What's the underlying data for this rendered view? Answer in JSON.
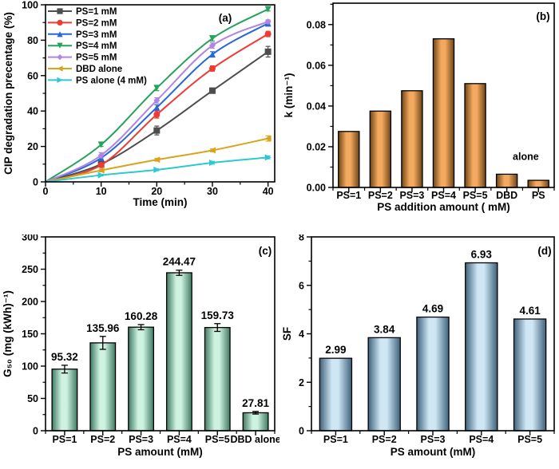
{
  "figure": {
    "background": "#ffffff"
  },
  "chart_data": [
    {
      "id": "a",
      "type": "line",
      "panel_label": "(a)",
      "xlabel": "Time (min)",
      "ylabel": "CIP degradation precentage (%)",
      "xlim": [
        0,
        41.2
      ],
      "ylim": [
        0,
        100
      ],
      "xticks": [
        0,
        10,
        20,
        30,
        40
      ],
      "yticks": [
        0,
        20,
        40,
        60,
        80,
        100
      ],
      "xminor": 5,
      "yminor": 10,
      "legend_position": "top-left",
      "x": [
        0,
        10,
        20,
        30,
        40
      ],
      "series": [
        {
          "name": "PS=1 mM",
          "color": "#4d4d4d",
          "marker": "square",
          "values": [
            0,
            10,
            29,
            51.5,
            73.5
          ],
          "errors": [
            0,
            1,
            2.5,
            1.5,
            3
          ]
        },
        {
          "name": "PS=2 mM",
          "color": "#ef3b32",
          "marker": "circle",
          "values": [
            0,
            9.5,
            38,
            64,
            83.5
          ],
          "errors": [
            0,
            1,
            2,
            1.5,
            1.5
          ]
        },
        {
          "name": "PS=3 mM",
          "color": "#2667d9",
          "marker": "triangle-up",
          "values": [
            0,
            13.5,
            42,
            72,
            89.5
          ],
          "errors": [
            0,
            1,
            1.5,
            1.5,
            1.5
          ]
        },
        {
          "name": "PS=4 mM",
          "color": "#27a25c",
          "marker": "triangle-down",
          "values": [
            0,
            21,
            53,
            81,
            97.5
          ],
          "errors": [
            0,
            1,
            1.5,
            1.5,
            1
          ]
        },
        {
          "name": "PS=5 mM",
          "color": "#b183e3",
          "marker": "diamond",
          "values": [
            0,
            15,
            46,
            77,
            90.5
          ],
          "errors": [
            0,
            1.5,
            1.5,
            1.5,
            1
          ]
        },
        {
          "name": "DBD alone",
          "color": "#d9a41c",
          "marker": "triangle-left",
          "values": [
            0,
            6.5,
            12.5,
            17.8,
            24.5
          ],
          "errors": [
            0,
            0.8,
            0.8,
            0.8,
            1.5
          ]
        },
        {
          "name": "PS alone (4 mM)",
          "color": "#2cc9d2",
          "marker": "triangle-right",
          "values": [
            0,
            3.8,
            6.8,
            10.8,
            13.8
          ],
          "errors": [
            0,
            0.5,
            0.5,
            0.8,
            0.8
          ]
        }
      ]
    },
    {
      "id": "b",
      "type": "bar",
      "panel_label": "(b)",
      "xlabel": "PS addition amount ( mM)",
      "ylabel": "k (min⁻¹)",
      "ylim": [
        0,
        0.0905
      ],
      "yticks": [
        0,
        0.02,
        0.04,
        0.06,
        0.08
      ],
      "ytick_decimals": 2,
      "yminor": 0.01,
      "categories": [
        "PS=1",
        "PS=2",
        "PS=3",
        "PS=4",
        "PS=5",
        "DBD",
        "PS"
      ],
      "values": [
        0.0275,
        0.0375,
        0.0475,
        0.073,
        0.051,
        0.0065,
        0.0035
      ],
      "annotation": {
        "text": "alone",
        "x_slot": 6.1,
        "y_value": 0.0135
      },
      "bar_fill": {
        "edge": "#6e4415",
        "center": "#f3a95f"
      }
    },
    {
      "id": "c",
      "type": "bar",
      "panel_label": "(c)",
      "xlabel": "PS amount (mM)",
      "ylabel": "G₅₀ (mg (kWh)⁻¹)",
      "ylim": [
        0,
        300
      ],
      "yticks": [
        0,
        50,
        100,
        150,
        200,
        250,
        300
      ],
      "ytick_decimals": 0,
      "yminor": 25,
      "categories": [
        "PS=1",
        "PS=2",
        "PS=3",
        "PS=4",
        "PS=5",
        "DBD alone"
      ],
      "values": [
        95.32,
        135.96,
        160.28,
        244.47,
        159.73,
        27.81
      ],
      "errors": [
        6,
        10,
        4,
        4,
        6,
        2
      ],
      "value_labels": [
        "95.32",
        "135.96",
        "160.28",
        "244.47",
        "159.73",
        "27.81"
      ],
      "bar_fill": {
        "edge": "#3f7a62",
        "center": "#cdf2e0"
      }
    },
    {
      "id": "d",
      "type": "bar",
      "panel_label": "(d)",
      "xlabel": "PS amount (mM)",
      "ylabel": "SF",
      "ylim": [
        0,
        8
      ],
      "yticks": [
        0,
        2,
        4,
        6,
        8
      ],
      "ytick_decimals": 0,
      "yminor": 1,
      "categories": [
        "PS=1",
        "PS=2",
        "PS=3",
        "PS=4",
        "PS=5"
      ],
      "values": [
        2.99,
        3.84,
        4.69,
        6.93,
        4.61
      ],
      "value_labels": [
        "2.99",
        "3.84",
        "4.69",
        "6.93",
        "4.61"
      ],
      "bar_fill": {
        "edge": "#3e627c",
        "center": "#cfe7f5"
      }
    }
  ]
}
